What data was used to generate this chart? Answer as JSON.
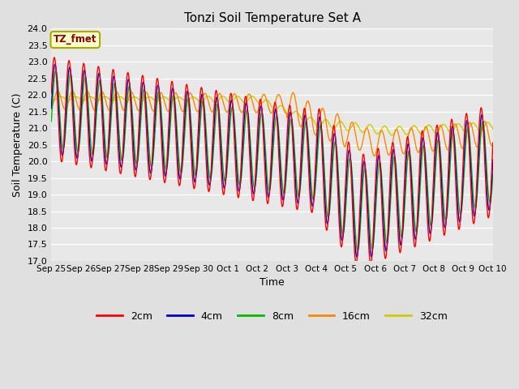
{
  "title": "Tonzi Soil Temperature Set A",
  "xlabel": "Time",
  "ylabel": "Soil Temperature (C)",
  "ylim": [
    17.0,
    24.0
  ],
  "yticks": [
    17.0,
    17.5,
    18.0,
    18.5,
    19.0,
    19.5,
    20.0,
    20.5,
    21.0,
    21.5,
    22.0,
    22.5,
    23.0,
    23.5,
    24.0
  ],
  "xtick_labels": [
    "Sep 25",
    "Sep 26",
    "Sep 27",
    "Sep 28",
    "Sep 29",
    "Sep 30",
    "Oct 1",
    "Oct 2",
    "Oct 3",
    "Oct 4",
    "Oct 5",
    "Oct 6",
    "Oct 7",
    "Oct 8",
    "Oct 9",
    "Oct 10"
  ],
  "colors": {
    "2cm": "#ff0000",
    "4cm": "#0000cc",
    "8cm": "#00bb00",
    "16cm": "#ff8800",
    "32cm": "#cccc00"
  },
  "legend_label": "TZ_fmet",
  "bg_color": "#e8e8e8",
  "fig_bg_color": "#e0e0e0",
  "n_points": 1440
}
